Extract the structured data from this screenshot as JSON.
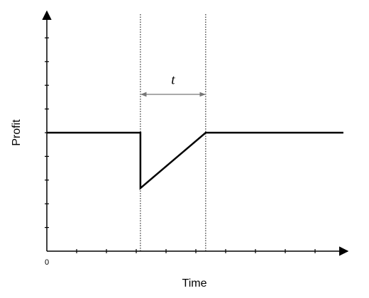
{
  "chart_data": {
    "type": "line",
    "x_label": "Time",
    "y_label": "Profit",
    "x": [
      0,
      3.14,
      3.14,
      5.33,
      9.95
    ],
    "values": [
      5,
      5,
      2.66,
      5,
      5
    ],
    "color": "#000000",
    "xlim": [
      0,
      10
    ],
    "ylim": [
      0,
      10
    ],
    "xticks": [
      0
    ],
    "xtick_marks": [
      1,
      2,
      3,
      4,
      5,
      6,
      7,
      8,
      9
    ],
    "ytick_marks": [
      1,
      2,
      3,
      4,
      5,
      6,
      7,
      8,
      9
    ],
    "annotation": {
      "text": "t",
      "from": 3.14,
      "to": 5.33
    }
  }
}
